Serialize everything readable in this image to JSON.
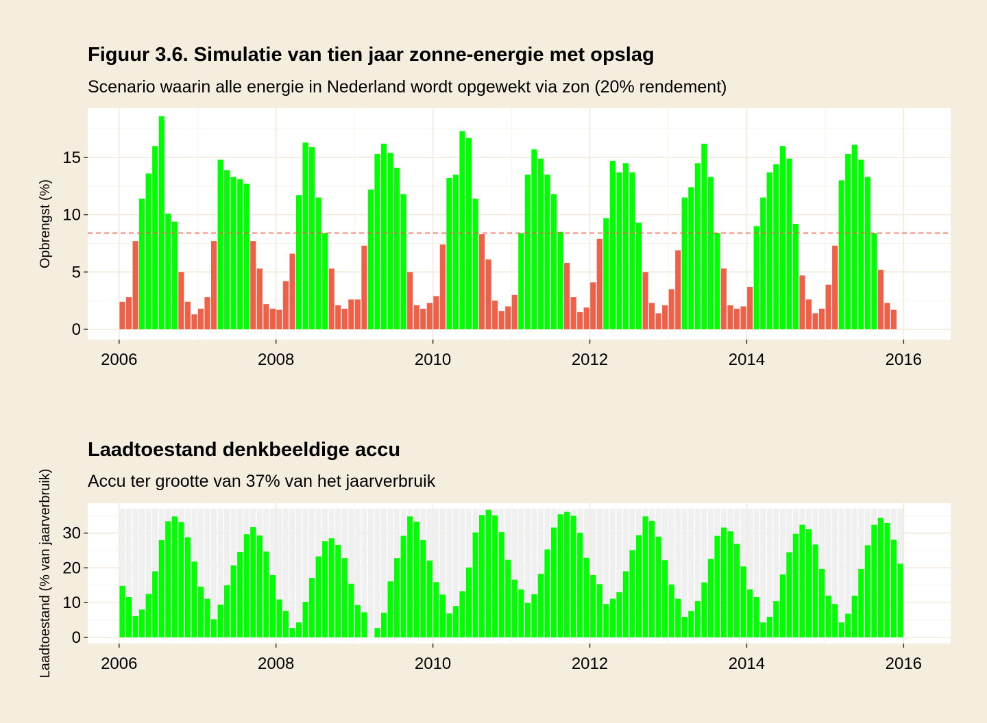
{
  "figure": {
    "title": "Figuur 3.6. Simulatie van tien jaar zonne-energie met opslag",
    "subtitle": "Scenario waarin alle energie in Nederland wordt opgewekt via zon (20% rendement)"
  },
  "battery": {
    "title": "Laadtoestand denkbeeldige accu",
    "subtitle": "Accu ter grootte van 37% van het jaarverbruik"
  },
  "colors": {
    "background": "#F5EEDE",
    "panel": "#FFFFFF",
    "surplus": "#00FF00",
    "deficit": "#EE6048",
    "capacity": "#F0F0F0",
    "reference_line": "#EE6048"
  },
  "chart_data": [
    {
      "type": "bar",
      "ylabel": "Opbrengst (%)",
      "x_start": "2006-01",
      "x_step": "month",
      "xlim": [
        2005.6,
        2016.6
      ],
      "ylim": [
        -0.9,
        19.3
      ],
      "x_ticks": [
        "2006",
        "2008",
        "2010",
        "2012",
        "2014",
        "2016"
      ],
      "y_ticks": [
        "0",
        "5",
        "10",
        "15"
      ],
      "reference_line": 8.4,
      "grid": true,
      "values": [
        2.4,
        2.8,
        7.7,
        11.4,
        13.6,
        16.0,
        18.6,
        10.1,
        9.4,
        5.0,
        2.4,
        1.3,
        1.8,
        2.8,
        7.7,
        14.8,
        13.9,
        13.3,
        13.1,
        12.7,
        7.7,
        5.3,
        2.2,
        1.8,
        1.7,
        4.2,
        6.6,
        11.7,
        16.3,
        15.9,
        11.5,
        8.4,
        5.3,
        2.1,
        1.8,
        2.6,
        2.6,
        7.3,
        12.2,
        15.3,
        16.2,
        15.4,
        14.1,
        11.8,
        5.0,
        2.1,
        1.8,
        2.3,
        2.9,
        7.4,
        13.2,
        13.5,
        17.3,
        16.7,
        11.4,
        8.3,
        6.1,
        2.5,
        1.6,
        2.0,
        3.0,
        8.4,
        13.5,
        15.7,
        14.9,
        13.5,
        11.8,
        8.5,
        5.8,
        2.8,
        1.5,
        1.9,
        4.1,
        7.9,
        9.7,
        14.7,
        13.7,
        14.5,
        13.7,
        9.3,
        5.0,
        2.3,
        1.4,
        2.1,
        3.5,
        6.9,
        11.5,
        12.4,
        14.5,
        16.2,
        13.3,
        8.4,
        5.3,
        2.1,
        1.8,
        2.0,
        3.7,
        9.0,
        11.5,
        13.7,
        14.4,
        16.0,
        14.9,
        9.2,
        4.7,
        2.6,
        1.4,
        1.8,
        3.9,
        7.3,
        13.0,
        15.3,
        16.1,
        14.8,
        13.3,
        8.4,
        5.2,
        2.3,
        1.7
      ]
    },
    {
      "type": "bar",
      "ylabel": "Laadtoestand (% van jaarverbruik)",
      "x_start": "2006-01",
      "x_step": "month",
      "xlim": [
        2005.6,
        2016.6
      ],
      "ylim": [
        -1.8,
        38.6
      ],
      "x_ticks": [
        "2006",
        "2008",
        "2010",
        "2012",
        "2014",
        "2016"
      ],
      "y_ticks": [
        "0",
        "10",
        "20",
        "30"
      ],
      "capacity": 37,
      "grid": true,
      "values": [
        14.8,
        11.6,
        6.1,
        8.0,
        12.5,
        19.0,
        28.0,
        33.4,
        34.8,
        33.2,
        28.8,
        21.8,
        14.6,
        11.1,
        5.2,
        9.4,
        15.0,
        20.7,
        24.6,
        29.7,
        31.7,
        29.3,
        24.7,
        17.9,
        10.9,
        7.6,
        2.7,
        4.3,
        10.2,
        17.1,
        23.3,
        27.7,
        28.5,
        26.6,
        22.8,
        15.4,
        9.3,
        7.2,
        0,
        2.7,
        7.1,
        16.1,
        22.8,
        29.2,
        34.8,
        33.3,
        28.0,
        22.1,
        15.9,
        12.3,
        6.9,
        9.0,
        13.3,
        20.1,
        30.2,
        35.2,
        36.7,
        35.1,
        30.3,
        22.3,
        16.6,
        13.8,
        9.9,
        12.4,
        18.3,
        25.3,
        31.6,
        35.4,
        36.1,
        35.0,
        30.1,
        22.9,
        17.9,
        15.3,
        9.6,
        11.1,
        13.0,
        19.0,
        25.1,
        29.4,
        34.8,
        33.5,
        29.0,
        22.2,
        15.2,
        11.1,
        5.9,
        7.6,
        10.4,
        15.8,
        22.6,
        29.2,
        31.6,
        30.5,
        26.9,
        20.4,
        13.8,
        11.6,
        4.3,
        5.9,
        10.4,
        18.1,
        24.5,
        29.8,
        32.4,
        31.1,
        26.7,
        19.7,
        12.0,
        9.6,
        4.3,
        6.8,
        12.0,
        19.7,
        26.5,
        32.4,
        34.4,
        32.9,
        28.1,
        21.2
      ]
    }
  ]
}
